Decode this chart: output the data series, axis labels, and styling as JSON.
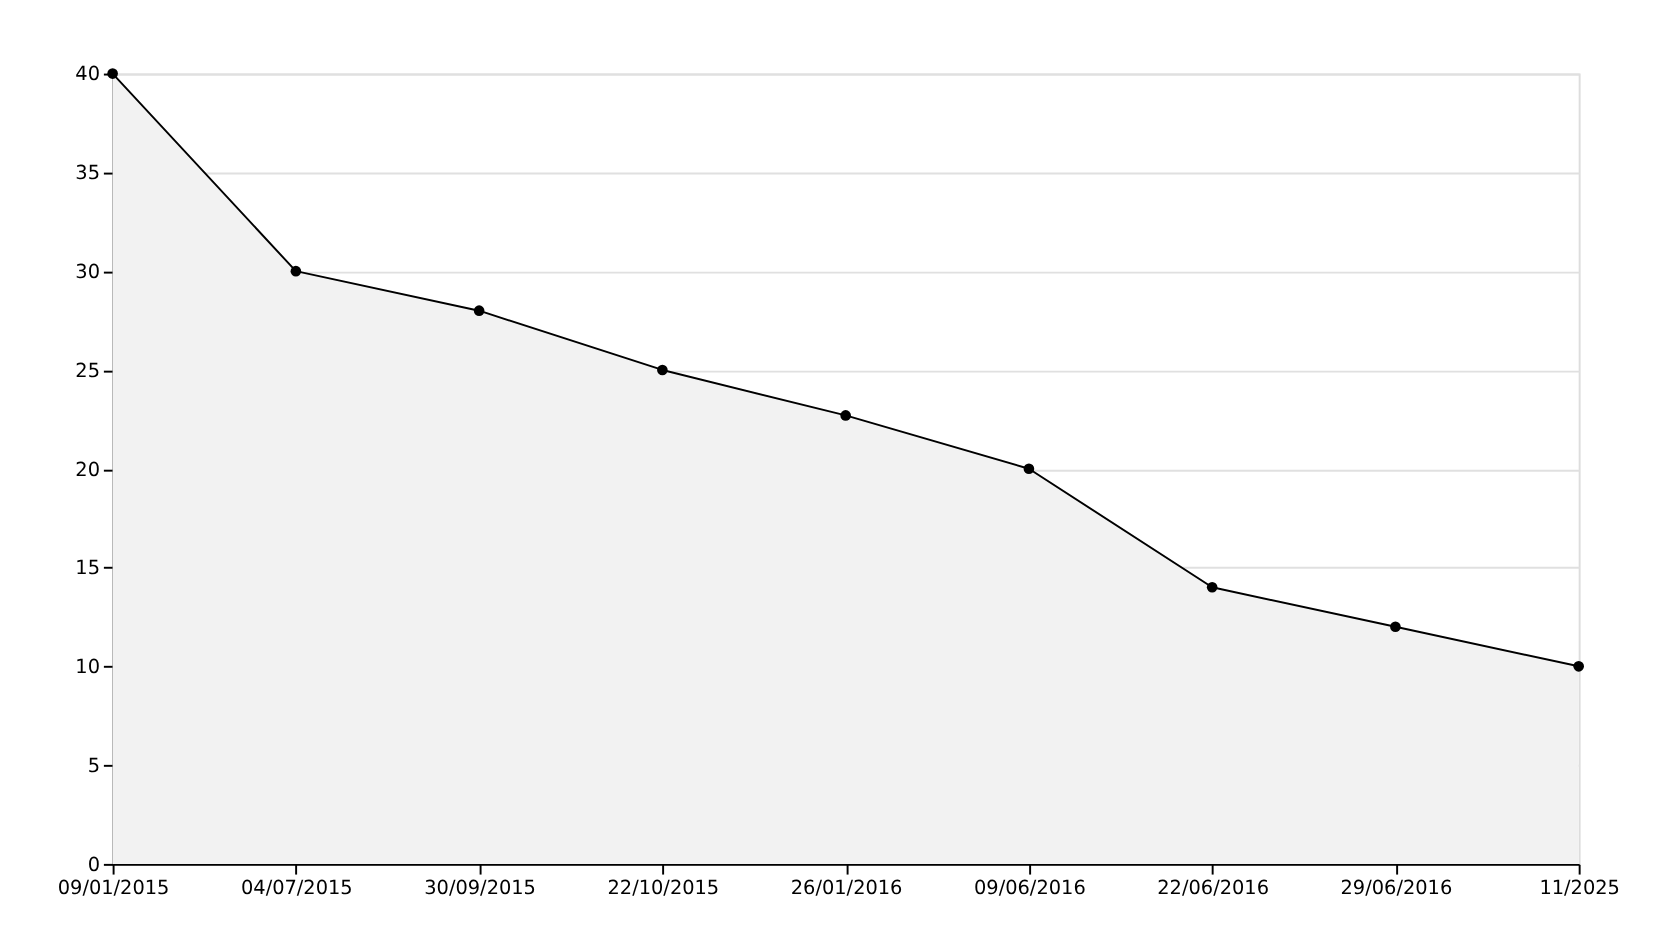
{
  "chart_data": {
    "type": "area",
    "categories": [
      "09/01/2015",
      "04/07/2015",
      "30/09/2015",
      "22/10/2015",
      "26/01/2016",
      "09/06/2016",
      "22/06/2016",
      "29/06/2016",
      "11/2025"
    ],
    "series": [
      {
        "color": "#000000",
        "values": [
          40,
          30,
          28,
          25,
          22.7,
          20,
          14,
          12,
          10
        ]
      }
    ],
    "ylim": [
      0,
      40
    ],
    "yticks": [
      0,
      5,
      10,
      15,
      20,
      25,
      30,
      35,
      40
    ],
    "grid": "y",
    "marker": "circle",
    "line_style": "solid"
  }
}
